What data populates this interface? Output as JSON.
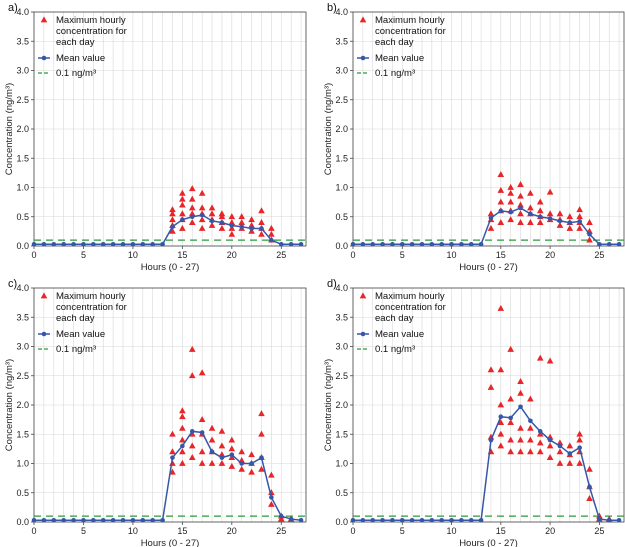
{
  "figure": {
    "legend_labels": {
      "max_line1": "Maximum hourly",
      "max_line2": "concentration for",
      "max_line3": "each day",
      "mean": "Mean value",
      "threshold": "0.1 ng/m³"
    },
    "colors": {
      "max_points": "#e8262a",
      "mean_line": "#3557a8",
      "threshold": "#2a9a3a",
      "grid": "#d8d8d8",
      "axis": "#444444"
    }
  },
  "chart_data": [
    {
      "panel_label": "a)",
      "type": "scatter+line",
      "xlabel": "Hours (0 - 27)",
      "ylabel": "Concentration (ng/m³)",
      "xlim": [
        0,
        27.5
      ],
      "ylim": [
        0,
        4.0
      ],
      "xticks": [
        "0",
        "5",
        "10",
        "15",
        "20",
        "25"
      ],
      "yticks": [
        "0.0",
        "0.5",
        "1.0",
        "1.5",
        "2.0",
        "2.5",
        "3.0",
        "3.5",
        "4.0"
      ],
      "threshold": 0.1,
      "mean": {
        "x": [
          0,
          1,
          2,
          3,
          4,
          5,
          6,
          7,
          8,
          9,
          10,
          11,
          12,
          13,
          14,
          15,
          16,
          17,
          18,
          19,
          20,
          21,
          22,
          23,
          24,
          25,
          26,
          27
        ],
        "y": [
          0.03,
          0.03,
          0.03,
          0.03,
          0.03,
          0.03,
          0.03,
          0.03,
          0.03,
          0.03,
          0.03,
          0.03,
          0.03,
          0.03,
          0.33,
          0.45,
          0.5,
          0.53,
          0.43,
          0.4,
          0.35,
          0.33,
          0.3,
          0.3,
          0.1,
          0.03,
          0.03,
          0.03
        ]
      },
      "max_points": {
        "x": [
          14,
          14,
          14,
          14,
          14,
          15,
          15,
          15,
          15,
          15,
          15,
          16,
          16,
          16,
          16,
          16,
          17,
          17,
          17,
          17,
          17,
          18,
          18,
          18,
          18,
          19,
          19,
          19,
          19,
          20,
          20,
          20,
          20,
          21,
          21,
          21,
          22,
          22,
          22,
          23,
          23,
          23,
          23,
          24,
          24,
          24
        ],
        "y": [
          0.25,
          0.35,
          0.45,
          0.55,
          0.62,
          0.3,
          0.45,
          0.55,
          0.7,
          0.8,
          0.9,
          0.4,
          0.55,
          0.65,
          0.8,
          0.98,
          0.3,
          0.45,
          0.55,
          0.65,
          0.9,
          0.35,
          0.45,
          0.55,
          0.65,
          0.3,
          0.4,
          0.5,
          0.55,
          0.2,
          0.3,
          0.4,
          0.5,
          0.3,
          0.4,
          0.5,
          0.25,
          0.35,
          0.45,
          0.2,
          0.3,
          0.4,
          0.6,
          0.1,
          0.2,
          0.3
        ]
      }
    },
    {
      "panel_label": "b)",
      "type": "scatter+line",
      "xlabel": "Hours (0 - 27)",
      "ylabel": "Concentration (ng/m³)",
      "xlim": [
        0,
        27.5
      ],
      "ylim": [
        0,
        4.0
      ],
      "xticks": [
        "0",
        "5",
        "10",
        "15",
        "20",
        "25"
      ],
      "yticks": [
        "0.0",
        "0.5",
        "1.0",
        "1.5",
        "2.0",
        "2.5",
        "3.0",
        "3.5",
        "4.0"
      ],
      "threshold": 0.1,
      "mean": {
        "x": [
          0,
          1,
          2,
          3,
          4,
          5,
          6,
          7,
          8,
          9,
          10,
          11,
          12,
          13,
          14,
          15,
          16,
          17,
          18,
          19,
          20,
          21,
          22,
          23,
          24,
          25,
          26,
          27
        ],
        "y": [
          0.03,
          0.03,
          0.03,
          0.03,
          0.03,
          0.03,
          0.03,
          0.03,
          0.03,
          0.03,
          0.03,
          0.03,
          0.03,
          0.03,
          0.48,
          0.6,
          0.58,
          0.65,
          0.55,
          0.5,
          0.47,
          0.43,
          0.4,
          0.42,
          0.2,
          0.03,
          0.03,
          0.03
        ]
      },
      "max_points": {
        "x": [
          14,
          14,
          14,
          15,
          15,
          15,
          15,
          15,
          16,
          16,
          16,
          16,
          16,
          17,
          17,
          17,
          17,
          17,
          18,
          18,
          18,
          18,
          19,
          19,
          19,
          19,
          20,
          20,
          20,
          21,
          21,
          21,
          22,
          22,
          22,
          23,
          23,
          23,
          23,
          24,
          24,
          24
        ],
        "y": [
          0.3,
          0.45,
          0.55,
          0.4,
          0.6,
          0.75,
          0.95,
          1.22,
          0.45,
          0.6,
          0.75,
          0.9,
          1.0,
          0.4,
          0.55,
          0.7,
          0.85,
          1.05,
          0.4,
          0.55,
          0.65,
          0.9,
          0.4,
          0.5,
          0.6,
          0.75,
          0.45,
          0.55,
          0.92,
          0.35,
          0.45,
          0.55,
          0.3,
          0.4,
          0.5,
          0.3,
          0.4,
          0.5,
          0.62,
          0.1,
          0.25,
          0.4
        ]
      }
    },
    {
      "panel_label": "c)",
      "type": "scatter+line",
      "xlabel": "Hours (0 - 27)",
      "ylabel": "Concentration (ng/m³)",
      "xlim": [
        0,
        27.5
      ],
      "ylim": [
        0,
        4.0
      ],
      "xticks": [
        "0",
        "5",
        "10",
        "15",
        "20",
        "25"
      ],
      "yticks": [
        "0.0",
        "0.5",
        "1.0",
        "1.5",
        "2.0",
        "2.5",
        "3.0",
        "3.5",
        "4.0"
      ],
      "threshold": 0.1,
      "mean": {
        "x": [
          0,
          1,
          2,
          3,
          4,
          5,
          6,
          7,
          8,
          9,
          10,
          11,
          12,
          13,
          14,
          15,
          16,
          17,
          18,
          19,
          20,
          21,
          22,
          23,
          24,
          25,
          26,
          27
        ],
        "y": [
          0.03,
          0.03,
          0.03,
          0.03,
          0.03,
          0.03,
          0.03,
          0.03,
          0.03,
          0.03,
          0.03,
          0.03,
          0.03,
          0.03,
          1.1,
          1.3,
          1.55,
          1.53,
          1.2,
          1.1,
          1.15,
          1.0,
          1.0,
          1.1,
          0.42,
          0.1,
          0.05,
          0.03
        ]
      },
      "max_points": {
        "x": [
          14,
          14,
          14,
          14,
          15,
          15,
          15,
          15,
          15,
          15,
          16,
          16,
          16,
          16,
          16,
          17,
          17,
          17,
          17,
          17,
          18,
          18,
          18,
          18,
          19,
          19,
          19,
          19,
          20,
          20,
          20,
          20,
          21,
          21,
          21,
          22,
          22,
          22,
          23,
          23,
          23,
          23,
          24,
          24,
          24,
          25,
          25,
          26
        ],
        "y": [
          0.85,
          1.0,
          1.2,
          1.5,
          1.0,
          1.2,
          1.4,
          1.6,
          1.8,
          1.9,
          1.1,
          1.3,
          1.5,
          2.5,
          2.95,
          1.0,
          1.2,
          1.5,
          1.75,
          2.55,
          1.0,
          1.2,
          1.4,
          1.6,
          1.0,
          1.15,
          1.3,
          1.55,
          0.95,
          1.1,
          1.25,
          1.4,
          0.9,
          1.05,
          1.2,
          0.85,
          1.0,
          1.15,
          0.9,
          1.1,
          1.5,
          1.85,
          0.3,
          0.5,
          0.8,
          0.05,
          0.1,
          0.05
        ]
      }
    },
    {
      "panel_label": "d)",
      "type": "scatter+line",
      "xlabel": "Hours (0 - 27)",
      "ylabel": "Concentration (ng/m³)",
      "xlim": [
        0,
        27.5
      ],
      "ylim": [
        0,
        4.0
      ],
      "xticks": [
        "0",
        "5",
        "10",
        "15",
        "20",
        "25"
      ],
      "yticks": [
        "0.0",
        "0.5",
        "1.0",
        "1.5",
        "2.0",
        "2.5",
        "3.0",
        "3.5",
        "4.0"
      ],
      "threshold": 0.1,
      "mean": {
        "x": [
          0,
          1,
          2,
          3,
          4,
          5,
          6,
          7,
          8,
          9,
          10,
          11,
          12,
          13,
          14,
          15,
          16,
          17,
          18,
          19,
          20,
          21,
          22,
          23,
          24,
          25,
          26,
          27
        ],
        "y": [
          0.03,
          0.03,
          0.03,
          0.03,
          0.03,
          0.03,
          0.03,
          0.03,
          0.03,
          0.03,
          0.03,
          0.03,
          0.03,
          0.03,
          1.4,
          1.8,
          1.78,
          1.97,
          1.73,
          1.55,
          1.4,
          1.3,
          1.17,
          1.27,
          0.6,
          0.05,
          0.03,
          0.03
        ]
      },
      "max_points": {
        "x": [
          14,
          14,
          14,
          14,
          15,
          15,
          15,
          15,
          15,
          15,
          16,
          16,
          16,
          16,
          16,
          17,
          17,
          17,
          17,
          17,
          18,
          18,
          18,
          18,
          19,
          19,
          19,
          19,
          20,
          20,
          20,
          20,
          21,
          21,
          21,
          22,
          22,
          22,
          23,
          23,
          23,
          23,
          24,
          24,
          24,
          25,
          25,
          26
        ],
        "y": [
          1.2,
          1.45,
          2.3,
          2.6,
          1.3,
          1.5,
          1.7,
          2.0,
          2.6,
          3.65,
          1.2,
          1.4,
          1.7,
          2.1,
          2.95,
          1.2,
          1.4,
          1.6,
          2.2,
          2.4,
          1.2,
          1.4,
          1.6,
          2.1,
          1.2,
          1.35,
          1.5,
          2.8,
          1.1,
          1.3,
          1.45,
          2.75,
          1.0,
          1.2,
          1.35,
          1.0,
          1.15,
          1.3,
          1.0,
          1.2,
          1.4,
          1.5,
          0.4,
          0.6,
          0.9,
          0.05,
          0.1,
          0.05
        ]
      }
    }
  ]
}
